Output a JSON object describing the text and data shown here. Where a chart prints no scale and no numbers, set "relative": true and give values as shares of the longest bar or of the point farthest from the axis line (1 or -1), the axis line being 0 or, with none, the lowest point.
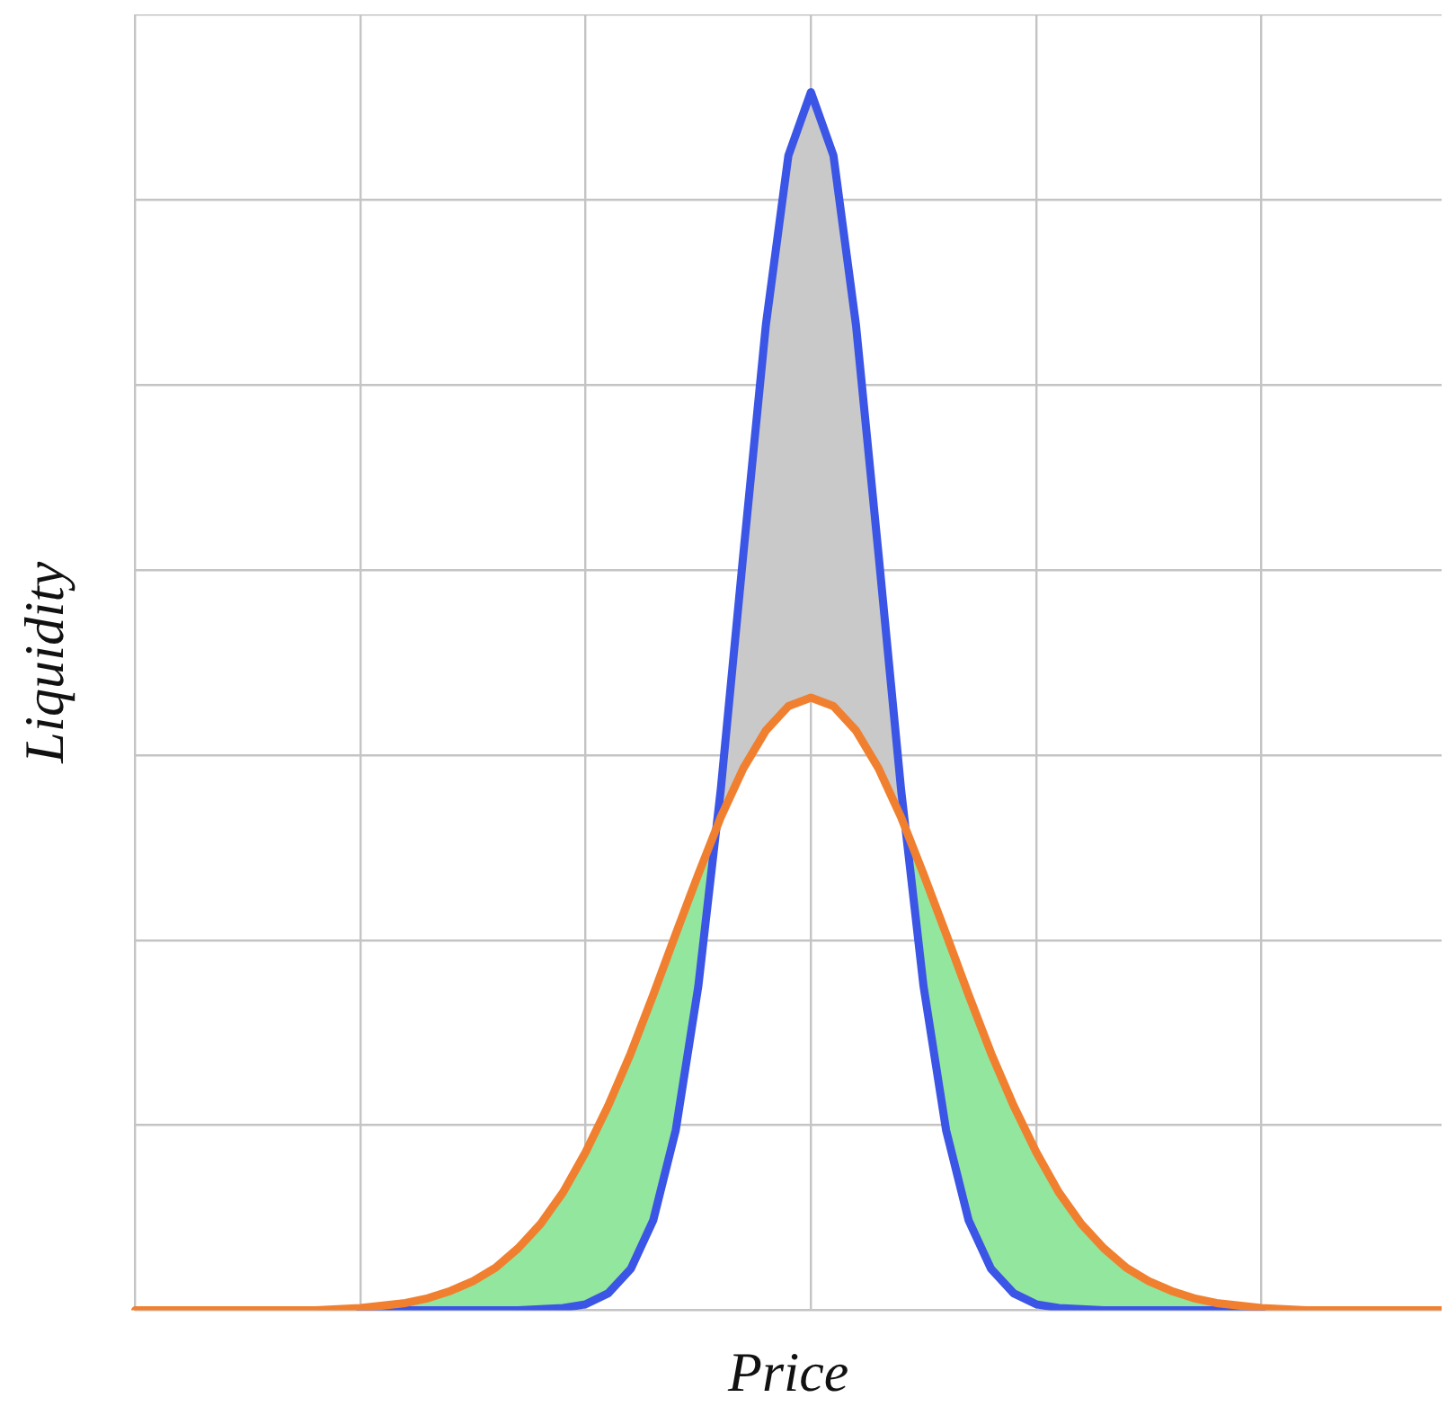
{
  "chart_data": {
    "type": "line",
    "xlabel": "Price",
    "ylabel": "Liquidity",
    "relative": true,
    "tick_labels": false,
    "grid": true,
    "legend": false,
    "marker": "none",
    "line_style": "solid",
    "categories": [
      null,
      null,
      null,
      null,
      null,
      null,
      null,
      null,
      null,
      null,
      null,
      null,
      null,
      null,
      null,
      null,
      null,
      null,
      null,
      null,
      null,
      null,
      null,
      null,
      null,
      null,
      null,
      null,
      null,
      null,
      null,
      null,
      null,
      null,
      null,
      null,
      null,
      null,
      null,
      null,
      null,
      null,
      null,
      null,
      null,
      null,
      null,
      null,
      null,
      null,
      null,
      null,
      null,
      null,
      null,
      null,
      null,
      null,
      null
    ],
    "series": [
      {
        "color": "#3b55e6",
        "values": [
          null,
          null,
          null,
          null,
          null,
          null,
          null,
          null,
          null,
          null,
          0,
          0,
          0,
          0,
          0,
          0,
          0,
          0,
          0.001,
          0.002,
          0.005,
          0.014,
          0.034,
          0.074,
          0.148,
          0.266,
          0.428,
          0.621,
          0.809,
          0.948,
          1,
          0.948,
          0.809,
          0.621,
          0.428,
          0.266,
          0.148,
          0.074,
          0.034,
          0.014,
          0.005,
          0.002,
          0.001,
          0,
          0,
          0,
          0,
          0,
          0,
          0,
          0,
          null,
          null,
          null,
          null,
          null,
          null,
          null,
          null
        ]
      },
      {
        "color": "#f08030",
        "values": [
          0,
          0,
          0,
          0,
          0,
          0,
          0,
          0,
          0,
          0.001,
          0.002,
          0.004,
          0.006,
          0.01,
          0.016,
          0.024,
          0.035,
          0.051,
          0.071,
          0.097,
          0.13,
          0.168,
          0.211,
          0.259,
          0.309,
          0.358,
          0.405,
          0.445,
          0.476,
          0.496,
          0.503,
          0.496,
          0.476,
          0.445,
          0.405,
          0.358,
          0.309,
          0.259,
          0.211,
          0.168,
          0.13,
          0.097,
          0.071,
          0.051,
          0.035,
          0.024,
          0.016,
          0.01,
          0.006,
          0.004,
          0.002,
          0.001,
          0,
          0,
          0,
          0,
          0,
          0,
          0
        ]
      }
    ]
  }
}
